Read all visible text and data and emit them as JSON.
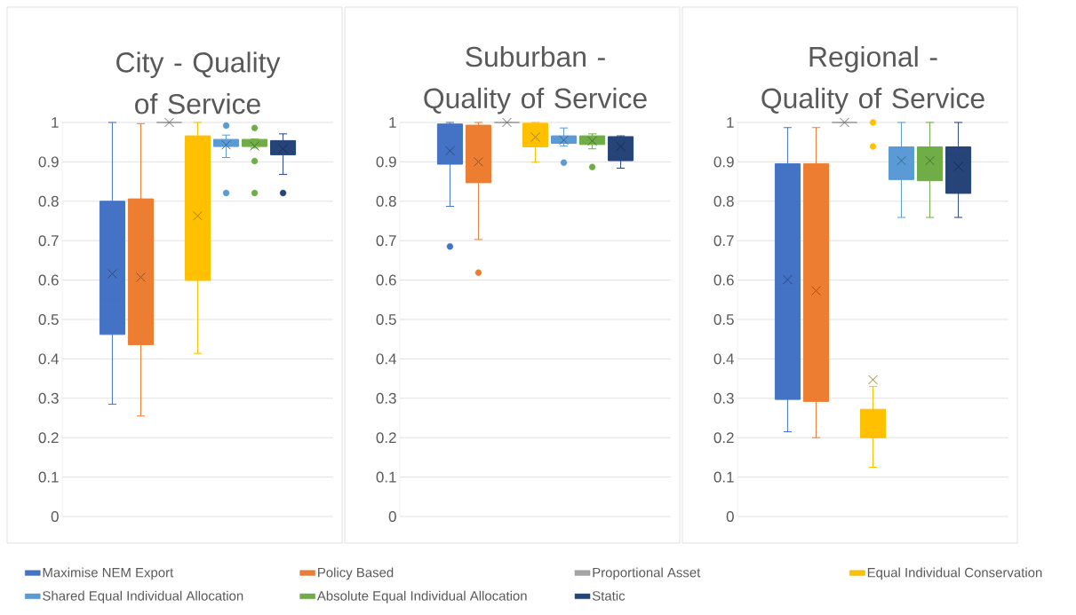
{
  "chart_data": [
    {
      "type": "box",
      "title": "City - Quality of Service",
      "categories": [
        null
      ],
      "ylim": [
        0,
        1
      ],
      "yticks": [
        0,
        0.1,
        0.2,
        0.3,
        0.4,
        0.5,
        0.6,
        0.7,
        0.8,
        0.9,
        1
      ],
      "grid": "y",
      "tick_labels": "y",
      "legend": "bottom",
      "series": [
        {
          "name": "Maximise NEM Export",
          "color": "#4472c4",
          "boxes": [
            {
              "low": 0.285,
              "q1": 0.462,
              "median": 0.55,
              "q3": 0.8,
              "high": 1.0,
              "mean": 0.616
            }
          ]
        },
        {
          "name": "Policy Based",
          "color": "#ed7d31",
          "boxes": [
            {
              "low": 0.255,
              "q1": 0.436,
              "median": 0.581,
              "q3": 0.806,
              "high": 0.997,
              "mean": 0.607
            }
          ]
        },
        {
          "name": "Proportional Asset",
          "color": "#a5a5a5",
          "boxes": [
            {
              "low": 1.0,
              "q1": 1.0,
              "median": 1.0,
              "q3": 1.0,
              "high": 1.0,
              "mean": 1.0
            }
          ]
        },
        {
          "name": "Equal Individual Conservation",
          "color": "#ffc000",
          "boxes": [
            {
              "low": 0.414,
              "q1": 0.599,
              "median": 0.772,
              "q3": 0.966,
              "high": 1.0,
              "mean": 0.763
            }
          ]
        },
        {
          "name": "Shared Equal Individual Allocation",
          "color": "#5b9bd5",
          "boxes": [
            {
              "low": 0.911,
              "q1": 0.939,
              "median": 0.948,
              "q3": 0.957,
              "high": 0.968,
              "mean": 0.943,
              "outliers": [
                0.992,
                0.821
              ]
            }
          ]
        },
        {
          "name": "Absolute Equal Individual Allocation",
          "color": "#70ad47",
          "boxes": [
            {
              "low": 0.935,
              "q1": 0.939,
              "median": 0.948,
              "q3": 0.957,
              "high": 0.958,
              "mean": 0.94,
              "outliers": [
                0.986,
                0.902,
                0.821
              ]
            }
          ]
        },
        {
          "name": "Static",
          "color": "#264478",
          "boxes": [
            {
              "low": 0.868,
              "q1": 0.918,
              "median": 0.95,
              "q3": 0.954,
              "high": 0.971,
              "mean": 0.933,
              "outliers": [
                0.821
              ]
            }
          ]
        }
      ]
    },
    {
      "type": "box",
      "title": "Suburban - Quality of Service",
      "categories": [
        null
      ],
      "ylim": [
        0,
        1
      ],
      "yticks": [
        0,
        0.1,
        0.2,
        0.3,
        0.4,
        0.5,
        0.6,
        0.7,
        0.8,
        0.9,
        1
      ],
      "grid": "y",
      "tick_labels": "y",
      "series": [
        {
          "color": "#4472c4",
          "boxes": [
            {
              "low": 0.787,
              "q1": 0.894,
              "median": 0.979,
              "q3": 0.996,
              "high": 1.0,
              "mean": 0.928,
              "outliers": [
                0.685
              ]
            }
          ]
        },
        {
          "color": "#ed7d31",
          "boxes": [
            {
              "low": 0.703,
              "q1": 0.847,
              "median": 0.928,
              "q3": 0.993,
              "high": 1.0,
              "mean": 0.9,
              "outliers": [
                0.619
              ]
            }
          ]
        },
        {
          "color": "#a5a5a5",
          "boxes": [
            {
              "low": 1.0,
              "q1": 1.0,
              "median": 1.0,
              "q3": 1.0,
              "high": 1.0,
              "mean": 1.0
            }
          ]
        },
        {
          "color": "#ffc000",
          "boxes": [
            {
              "low": 0.899,
              "q1": 0.938,
              "median": 0.962,
              "q3": 0.998,
              "high": 1.0,
              "mean": 0.963
            }
          ]
        },
        {
          "color": "#5b9bd5",
          "boxes": [
            {
              "low": 0.94,
              "q1": 0.947,
              "median": 0.957,
              "q3": 0.966,
              "high": 0.986,
              "mean": 0.955,
              "outliers": [
                0.898
              ]
            }
          ]
        },
        {
          "color": "#70ad47",
          "boxes": [
            {
              "low": 0.933,
              "q1": 0.944,
              "median": 0.956,
              "q3": 0.966,
              "high": 0.971,
              "mean": 0.953,
              "outliers": [
                0.887
              ]
            }
          ]
        },
        {
          "color": "#264478",
          "boxes": [
            {
              "low": 0.884,
              "q1": 0.903,
              "median": 0.955,
              "q3": 0.964,
              "high": 0.966,
              "mean": 0.939
            }
          ]
        }
      ]
    },
    {
      "type": "box",
      "title": "Regional - Quality of Service",
      "categories": [
        null
      ],
      "ylim": [
        0,
        1
      ],
      "yticks": [
        0,
        0.1,
        0.2,
        0.3,
        0.4,
        0.5,
        0.6,
        0.7,
        0.8,
        0.9,
        1
      ],
      "grid": "y",
      "tick_labels": "y",
      "series": [
        {
          "color": "#4472c4",
          "boxes": [
            {
              "low": 0.215,
              "q1": 0.297,
              "median": 0.578,
              "q3": 0.895,
              "high": 0.987,
              "mean": 0.601
            }
          ]
        },
        {
          "color": "#ed7d31",
          "boxes": [
            {
              "low": 0.2,
              "q1": 0.292,
              "median": 0.509,
              "q3": 0.895,
              "high": 0.987,
              "mean": 0.573
            }
          ]
        },
        {
          "color": "#a5a5a5",
          "boxes": [
            {
              "low": 1.0,
              "q1": 1.0,
              "median": 1.0,
              "q3": 1.0,
              "high": 1.0,
              "mean": 1.0
            }
          ]
        },
        {
          "color": "#ffc000",
          "boxes": [
            {
              "low": 0.125,
              "q1": 0.2,
              "median": 0.247,
              "q3": 0.272,
              "high": 0.33,
              "mean": 0.347,
              "outliers": [
                1.0,
                0.939
              ]
            }
          ]
        },
        {
          "color": "#5b9bd5",
          "boxes": [
            {
              "low": 0.759,
              "q1": 0.855,
              "median": 0.918,
              "q3": 0.938,
              "high": 1.0,
              "mean": 0.903
            }
          ]
        },
        {
          "color": "#70ad47",
          "boxes": [
            {
              "low": 0.759,
              "q1": 0.852,
              "median": 0.918,
              "q3": 0.938,
              "high": 1.0,
              "mean": 0.903
            }
          ]
        },
        {
          "color": "#264478",
          "boxes": [
            {
              "low": 0.759,
              "q1": 0.82,
              "median": 0.918,
              "q3": 0.938,
              "high": 1.0,
              "mean": 0.888
            }
          ]
        }
      ]
    }
  ]
}
